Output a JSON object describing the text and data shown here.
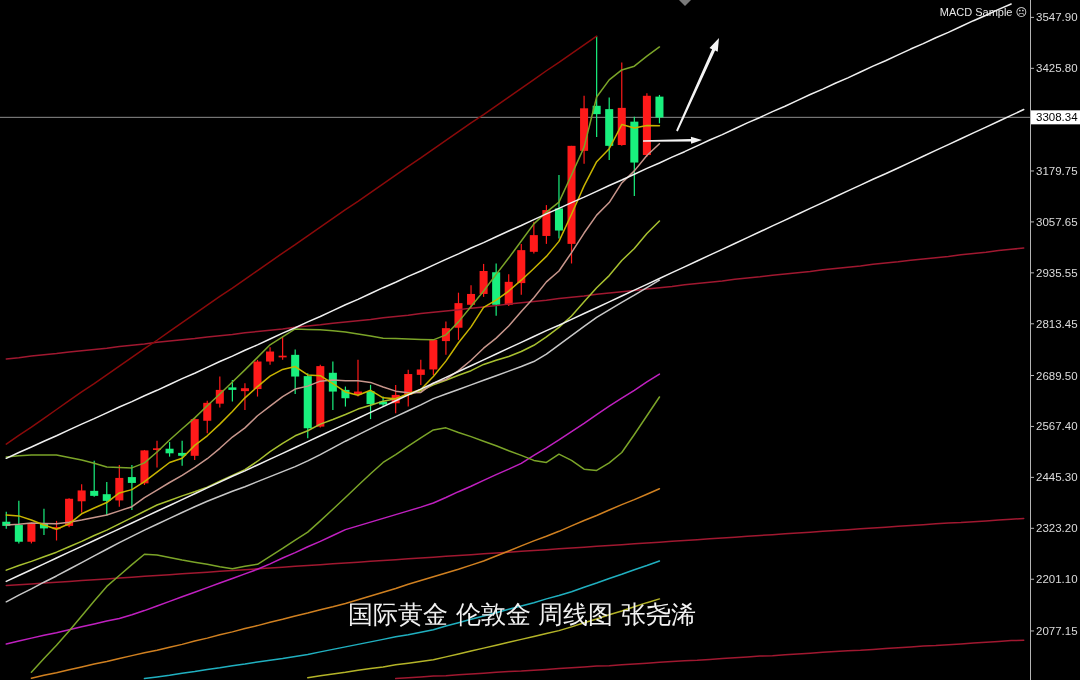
{
  "chart_data": {
    "type": "candlestick",
    "title": "国际黄金 伦敦金 周线图 张尧浠",
    "annotations": [
      "MACD Sample ☹"
    ],
    "categories": [
      null,
      null,
      null,
      null,
      null,
      null,
      null,
      null,
      null,
      null,
      null,
      null,
      null,
      null,
      null,
      null,
      null,
      null,
      null,
      null,
      null,
      null,
      null,
      null,
      null,
      null,
      null,
      null,
      null,
      null,
      null,
      null,
      null,
      null,
      null,
      null,
      null,
      null,
      null,
      null,
      null,
      null,
      null,
      null,
      null,
      null,
      null,
      null,
      null,
      null,
      null,
      null,
      null,
      null,
      null,
      null,
      null,
      null,
      null,
      null,
      null,
      null,
      null,
      null,
      null,
      null,
      null,
      null,
      null,
      null,
      null,
      null,
      null,
      null,
      null,
      null,
      null,
      null,
      null,
      null,
      null,
      null
    ],
    "ohlc": [
      [
        2339,
        2363,
        2322,
        2329
      ],
      [
        2331,
        2389,
        2287,
        2291
      ],
      [
        2291,
        2337,
        2287,
        2334
      ],
      [
        2334,
        2370,
        2307,
        2323
      ],
      [
        2321,
        2341,
        2294,
        2326
      ],
      [
        2329,
        2395,
        2326,
        2394
      ],
      [
        2388,
        2429,
        2361,
        2414
      ],
      [
        2413,
        2485,
        2399,
        2401
      ],
      [
        2405,
        2434,
        2354,
        2389
      ],
      [
        2390,
        2475,
        2375,
        2444
      ],
      [
        2446,
        2475,
        2367,
        2432
      ],
      [
        2431,
        2511,
        2427,
        2510
      ],
      [
        2511,
        2533,
        2469,
        2515
      ],
      [
        2514,
        2530,
        2495,
        2503
      ],
      [
        2504,
        2533,
        2473,
        2497
      ],
      [
        2497,
        2588,
        2487,
        2585
      ],
      [
        2581,
        2629,
        2551,
        2624
      ],
      [
        2622,
        2687,
        2613,
        2655
      ],
      [
        2661,
        2679,
        2627,
        2655
      ],
      [
        2652,
        2671,
        2607,
        2659
      ],
      [
        2657,
        2727,
        2639,
        2723
      ],
      [
        2723,
        2757,
        2715,
        2747
      ],
      [
        2733,
        2783,
        2727,
        2737
      ],
      [
        2739,
        2752,
        2645,
        2687
      ],
      [
        2688,
        2695,
        2539,
        2563
      ],
      [
        2567,
        2715,
        2565,
        2712
      ],
      [
        2696,
        2723,
        2607,
        2651
      ],
      [
        2655,
        2663,
        2615,
        2635
      ],
      [
        2644,
        2727,
        2639,
        2651
      ],
      [
        2652,
        2667,
        2585,
        2621
      ],
      [
        2627,
        2639,
        2615,
        2620
      ],
      [
        2623,
        2667,
        2599,
        2643
      ],
      [
        2643,
        2703,
        2615,
        2693
      ],
      [
        2691,
        2727,
        2667,
        2704
      ],
      [
        2704,
        2776,
        2691,
        2775
      ],
      [
        2772,
        2819,
        2739,
        2803
      ],
      [
        2804,
        2888,
        2775,
        2863
      ],
      [
        2859,
        2906,
        2851,
        2885
      ],
      [
        2885,
        2957,
        2878,
        2940
      ],
      [
        2937,
        2958,
        2833,
        2859
      ],
      [
        2859,
        2932,
        2856,
        2914
      ],
      [
        2911,
        3005,
        2883,
        2990
      ],
      [
        2986,
        3058,
        2982,
        3026
      ],
      [
        3024,
        3098,
        3005,
        3086
      ],
      [
        3090,
        3170,
        3018,
        3037
      ],
      [
        3005,
        3240,
        2958,
        3240
      ],
      [
        3228,
        3360,
        3197,
        3330
      ],
      [
        3336,
        3503,
        3261,
        3316
      ],
      [
        3328,
        3356,
        3206,
        3240
      ],
      [
        3242,
        3440,
        3240,
        3331
      ],
      [
        3298,
        3310,
        3120,
        3200
      ],
      [
        3218,
        3366,
        3214,
        3360
      ],
      [
        3358,
        3362,
        3294,
        3308
      ],
      null,
      null,
      null,
      null,
      null,
      null,
      null,
      null,
      null,
      null,
      null,
      null,
      null,
      null,
      null,
      null,
      null,
      null,
      null,
      null,
      null,
      null,
      null,
      null,
      null,
      null,
      null,
      null,
      null
    ],
    "colors": [
      "#19f07e",
      "#19f07e",
      "#ff1a1a",
      "#19f07e",
      "#ff1a1a",
      "#ff1a1a",
      "#ff1a1a",
      "#19f07e",
      "#19f07e",
      "#ff1a1a",
      "#19f07e",
      "#ff1a1a",
      "#ff1a1a",
      "#19f07e",
      "#19f07e",
      "#ff1a1a",
      "#ff1a1a",
      "#ff1a1a",
      "#19f07e",
      "#ff1a1a",
      "#ff1a1a",
      "#ff1a1a",
      "#ff1a1a",
      "#19f07e",
      "#19f07e",
      "#ff1a1a",
      "#19f07e",
      "#19f07e",
      "#ff1a1a",
      "#19f07e",
      "#19f07e",
      "#ff1a1a",
      "#ff1a1a",
      "#ff1a1a",
      "#ff1a1a",
      "#ff1a1a",
      "#ff1a1a",
      "#ff1a1a",
      "#ff1a1a",
      "#19f07e",
      "#ff1a1a",
      "#ff1a1a",
      "#ff1a1a",
      "#ff1a1a",
      "#19f07e",
      "#ff1a1a",
      "#ff1a1a",
      "#19f07e",
      "#19f07e",
      "#ff1a1a",
      "#19f07e",
      "#ff1a1a",
      "#19f07e",
      null,
      null,
      null,
      null,
      null,
      null,
      null,
      null,
      null,
      null,
      null,
      null,
      null,
      null,
      null,
      null,
      null,
      null,
      null,
      null,
      null,
      null,
      null,
      null,
      null,
      null,
      null,
      null,
      null
    ],
    "ylim": [
      1959.6,
      3589.6
    ],
    "yticks": [
      {
        "value": 3547.9,
        "label": "3547.90"
      },
      {
        "value": 3425.8,
        "label": "3425.80"
      },
      {
        "value": 3179.75,
        "label": "3179.75"
      },
      {
        "value": 3057.65,
        "label": "3057.65"
      },
      {
        "value": 2935.55,
        "label": "2935.55"
      },
      {
        "value": 2813.45,
        "label": "2813.45"
      },
      {
        "value": 2689.5,
        "label": "2689.50"
      },
      {
        "value": 2567.4,
        "label": "2567.40"
      },
      {
        "value": 2445.3,
        "label": "2445.30"
      },
      {
        "value": 2323.2,
        "label": "2323.20"
      },
      {
        "value": 2201.1,
        "label": "2201.10"
      },
      {
        "value": 2077.15,
        "label": "2077.15"
      }
    ],
    "tick_labels": "y",
    "ref_lines": [
      {
        "axis": "y",
        "value": 3308.34,
        "label": "3308.34",
        "color": "#8c8c8c"
      }
    ],
    "series": [
      {
        "type": "line",
        "color": "#a01830",
        "values": [
          null,
          null,
          null,
          null,
          null,
          null,
          null,
          null,
          null,
          null,
          null,
          null,
          null,
          null,
          null,
          null,
          null,
          null,
          null,
          null,
          null,
          null,
          null,
          null,
          null,
          null,
          null,
          null,
          null,
          null,
          null,
          1963,
          1965,
          1967,
          1969,
          1970,
          1972,
          1974,
          1976,
          1978,
          1980,
          1981,
          1983,
          1985,
          1987,
          1989,
          1991,
          1993,
          1994,
          1996,
          1998,
          2000,
          2002,
          2004,
          2006,
          2007,
          2009,
          2011,
          2013,
          2015,
          2017,
          2018,
          2020,
          2022,
          2024,
          2026,
          2028,
          2030,
          2031,
          2033,
          2035,
          2037,
          2039,
          2041,
          2042,
          2044,
          2046,
          2048,
          2050,
          2052,
          2054,
          2055
        ]
      },
      {
        "type": "line",
        "color": "#a01830",
        "values": [
          2186,
          2188,
          2190,
          2192,
          2194,
          2196,
          2198,
          2200,
          2202,
          2204,
          2206,
          2208,
          2210,
          2212,
          2214,
          2216,
          2218,
          2220,
          2222,
          2224,
          2226,
          2228,
          2230,
          2232,
          2234,
          2236,
          2238,
          2240,
          2242,
          2244,
          2246,
          2248,
          2250,
          2252,
          2254,
          2256,
          2258,
          2260,
          2262,
          2264,
          2266,
          2268,
          2270,
          2272,
          2274,
          2276,
          2278,
          2280,
          2282,
          2284,
          2286,
          2288,
          2290,
          2292,
          2294,
          2296,
          2298,
          2300,
          2302,
          2304,
          2306,
          2308,
          2310,
          2312,
          2314,
          2316,
          2318,
          2320,
          2322,
          2324,
          2326,
          2328,
          2330,
          2332,
          2334,
          2336,
          2337,
          2339,
          2341,
          2343,
          2345,
          2347
        ]
      },
      {
        "type": "line",
        "color": "#a01830",
        "values": [
          2729,
          2732,
          2736,
          2739,
          2742,
          2746,
          2749,
          2752,
          2755,
          2759,
          2762,
          2765,
          2769,
          2772,
          2775,
          2778,
          2782,
          2785,
          2788,
          2792,
          2795,
          2798,
          2801,
          2805,
          2808,
          2811,
          2815,
          2818,
          2821,
          2824,
          2828,
          2831,
          2834,
          2838,
          2841,
          2844,
          2847,
          2851,
          2854,
          2857,
          2861,
          2864,
          2867,
          2870,
          2874,
          2877,
          2880,
          2884,
          2887,
          2890,
          2893,
          2897,
          2900,
          2903,
          2907,
          2910,
          2913,
          2916,
          2920,
          2923,
          2926,
          2930,
          2933,
          2936,
          2939,
          2943,
          2946,
          2949,
          2952,
          2956,
          2959,
          2962,
          2966,
          2969,
          2972,
          2975,
          2979,
          2982,
          2985,
          2989,
          2992,
          2995
        ]
      },
      {
        "type": "line",
        "color": "#8b0a0a",
        "values": [
          2525,
          2546,
          2566,
          2587,
          2608,
          2629,
          2650,
          2670,
          2691,
          2712,
          2733,
          2754,
          2774,
          2795,
          2816,
          2837,
          2858,
          2879,
          2899,
          2920,
          2941,
          2962,
          2983,
          3003,
          3024,
          3045,
          3066,
          3087,
          3107,
          3128,
          3149,
          3170,
          3191,
          3211,
          3232,
          3253,
          3274,
          3295,
          3315,
          3336,
          3357,
          3378,
          3399,
          3420,
          3440,
          3461,
          3482,
          3503,
          null,
          null,
          null,
          null,
          null,
          null,
          null,
          null,
          null,
          null,
          null,
          null,
          null,
          null,
          null,
          null,
          null,
          null,
          null,
          null,
          null,
          null,
          null,
          null,
          null,
          null,
          null,
          null,
          null,
          null,
          null,
          null,
          null,
          null
        ]
      },
      {
        "type": "line",
        "color": "#b4b428",
        "values": [
          null,
          null,
          null,
          null,
          null,
          null,
          null,
          null,
          null,
          null,
          null,
          null,
          null,
          null,
          null,
          null,
          null,
          null,
          null,
          null,
          null,
          null,
          null,
          null,
          1965,
          1970,
          1974,
          1978,
          1983,
          1987,
          1991,
          1996,
          2000,
          2004,
          2008,
          2015,
          2022,
          2029,
          2036,
          2043,
          2050,
          2057,
          2064,
          2071,
          2078,
          2087,
          2097,
          2106,
          2116,
          2125,
          2135,
          2145,
          2154,
          null,
          null,
          null,
          null,
          null,
          null,
          null,
          null,
          null,
          null,
          null,
          null,
          null,
          null,
          null,
          null,
          null,
          null,
          null,
          null,
          null,
          null,
          null,
          null,
          null,
          null,
          null,
          null,
          null
        ]
      },
      {
        "type": "line",
        "color": "#20b0c0",
        "values": [
          null,
          null,
          null,
          null,
          null,
          null,
          null,
          null,
          null,
          null,
          null,
          1963,
          1967,
          1971,
          1976,
          1980,
          1985,
          1989,
          1994,
          1998,
          2003,
          2007,
          2011,
          2016,
          2021,
          2027,
          2033,
          2039,
          2045,
          2051,
          2057,
          2063,
          2068,
          2074,
          2080,
          2089,
          2097,
          2105,
          2113,
          2121,
          2129,
          2137,
          2145,
          2154,
          2162,
          2171,
          2182,
          2192,
          2203,
          2213,
          2224,
          2234,
          2245,
          null,
          null,
          null,
          null,
          null,
          null,
          null,
          null,
          null,
          null,
          null,
          null,
          null,
          null,
          null,
          null,
          null,
          null,
          null,
          null,
          null,
          null,
          null,
          null,
          null,
          null,
          null,
          null,
          null
        ]
      },
      {
        "type": "line",
        "color": "#d08020",
        "values": [
          null,
          null,
          1964,
          1971,
          1977,
          1984,
          1991,
          1998,
          2004,
          2011,
          2018,
          2025,
          2031,
          2038,
          2045,
          2053,
          2060,
          2068,
          2075,
          2083,
          2090,
          2098,
          2105,
          2113,
          2120,
          2128,
          2135,
          2143,
          2152,
          2161,
          2170,
          2179,
          2189,
          2198,
          2207,
          2216,
          2225,
          2235,
          2245,
          2257,
          2269,
          2281,
          2293,
          2304,
          2316,
          2329,
          2342,
          2354,
          2367,
          2380,
          2392,
          2405,
          2418,
          null,
          null,
          null,
          null,
          null,
          null,
          null,
          null,
          null,
          null,
          null,
          null,
          null,
          null,
          null,
          null,
          null,
          null,
          null,
          null,
          null,
          null,
          null,
          null,
          null,
          null,
          null,
          null,
          null
        ]
      },
      {
        "type": "line",
        "color": "#c020c0",
        "values": [
          2046,
          2053,
          2060,
          2067,
          2073,
          2080,
          2087,
          2094,
          2101,
          2107,
          2116,
          2126,
          2137,
          2148,
          2159,
          2170,
          2181,
          2192,
          2203,
          2214,
          2225,
          2238,
          2252,
          2265,
          2279,
          2292,
          2306,
          2320,
          2329,
          2338,
          2347,
          2356,
          2365,
          2374,
          2384,
          2397,
          2411,
          2424,
          2438,
          2452,
          2465,
          2479,
          2498,
          2516,
          2535,
          2555,
          2575,
          2596,
          2616,
          2635,
          2654,
          2674,
          2693,
          null,
          null,
          null,
          null,
          null,
          null,
          null,
          null,
          null,
          null,
          null,
          null,
          null,
          null,
          null,
          null,
          null,
          null,
          null,
          null,
          null,
          null,
          null,
          null,
          null,
          null,
          null,
          null,
          null
        ]
      },
      {
        "type": "line",
        "color": "#7ba428",
        "values": [
          null,
          null,
          1978,
          2011,
          2043,
          2077,
          2113,
          2149,
          2184,
          2210,
          2236,
          2261,
          2259,
          2253,
          2247,
          2242,
          2237,
          2231,
          2226,
          2232,
          2237,
          2256,
          2275,
          2295,
          2314,
          2341,
          2369,
          2397,
          2426,
          2454,
          2481,
          2500,
          2520,
          2540,
          2559,
          2564,
          2553,
          2543,
          2532,
          2521,
          2509,
          2498,
          2486,
          2481,
          2501,
          2486,
          2465,
          2462,
          2480,
          2505,
          2548,
          2593,
          2638,
          null,
          null,
          null,
          null,
          null,
          null,
          null,
          null,
          null,
          null,
          null,
          null,
          null,
          null,
          null,
          null,
          null,
          null,
          null,
          null,
          null,
          null,
          null,
          null,
          null,
          null,
          null,
          null,
          null
        ]
      },
      {
        "type": "line",
        "color": "#7ba428",
        "values": [
          2494,
          2497,
          2499,
          2499,
          2499,
          2493,
          2487,
          2479,
          2470,
          2469,
          2468,
          2480,
          2506,
          2535,
          2562,
          2588,
          2617,
          2645,
          2674,
          2703,
          2733,
          2763,
          2782,
          2801,
          2800,
          2799,
          2797,
          2794,
          2789,
          2784,
          2779,
          2778,
          2777,
          2776,
          2775,
          2787,
          2818,
          2855,
          2892,
          2932,
          2971,
          3012,
          3053,
          3081,
          3105,
          3170,
          3237,
          3357,
          3398,
          3422,
          3431,
          3455,
          3477,
          null,
          null,
          null,
          null,
          null,
          null,
          null,
          null,
          null,
          null,
          null,
          null,
          null,
          null,
          null,
          null,
          null,
          null,
          null,
          null,
          null,
          null,
          null,
          null,
          null,
          null,
          null,
          null,
          null
        ]
      },
      {
        "type": "line",
        "color": "#c8c8c8",
        "values": [
          2147,
          2163,
          2178,
          2194,
          2209,
          2225,
          2241,
          2257,
          2273,
          2289,
          2304,
          2319,
          2333,
          2347,
          2361,
          2375,
          2388,
          2400,
          2412,
          2423,
          2435,
          2447,
          2459,
          2471,
          2485,
          2500,
          2516,
          2532,
          2547,
          2562,
          2577,
          2591,
          2605,
          2619,
          2634,
          2645,
          2656,
          2667,
          2678,
          2689,
          2700,
          2711,
          2723,
          2741,
          2763,
          2785,
          2807,
          2829,
          2847,
          2865,
          2882,
          2900,
          2918,
          null,
          null,
          null,
          null,
          null,
          null,
          null,
          null,
          null,
          null,
          null,
          null,
          null,
          null,
          null,
          null,
          null,
          null,
          null,
          null,
          null,
          null,
          null,
          null,
          null,
          null,
          null,
          null,
          null
        ]
      },
      {
        "type": "line",
        "color": "#a8c030",
        "values": [
          2223,
          2234,
          2244,
          2255,
          2266,
          2279,
          2292,
          2306,
          2319,
          2334,
          2349,
          2364,
          2379,
          2390,
          2401,
          2411,
          2422,
          2436,
          2450,
          2464,
          2484,
          2507,
          2527,
          2545,
          2557,
          2573,
          2584,
          2596,
          2609,
          2618,
          2628,
          2634,
          2643,
          2653,
          2667,
          2678,
          2690,
          2701,
          2716,
          2726,
          2735,
          2747,
          2762,
          2782,
          2805,
          2832,
          2866,
          2900,
          2929,
          2965,
          2994,
          3030,
          3060,
          null,
          null,
          null,
          null,
          null,
          null,
          null,
          null,
          null,
          null,
          null,
          null,
          null,
          null,
          null,
          null,
          null,
          null,
          null,
          null,
          null,
          null,
          null,
          null,
          null,
          null,
          null,
          null,
          null
        ]
      },
      {
        "type": "line",
        "color": "#c8968c",
        "values": [
          2331,
          2333,
          2336,
          2335,
          2334,
          2338,
          2343,
          2349,
          2355,
          2365,
          2375,
          2397,
          2415,
          2433,
          2450,
          2469,
          2490,
          2515,
          2542,
          2564,
          2593,
          2616,
          2639,
          2657,
          2664,
          2676,
          2679,
          2677,
          2677,
          2673,
          2662,
          2652,
          2648,
          2649,
          2671,
          2680,
          2701,
          2726,
          2755,
          2779,
          2808,
          2843,
          2876,
          2914,
          2940,
          2984,
          3031,
          3074,
          3104,
          3151,
          3180,
          3217,
          3245,
          null,
          null,
          null,
          null,
          null,
          null,
          null,
          null,
          null,
          null,
          null,
          null,
          null,
          null,
          null,
          null,
          null,
          null,
          null,
          null,
          null,
          null,
          null,
          null,
          null,
          null,
          null,
          null,
          null
        ]
      },
      {
        "type": "line",
        "color": "#c8b400",
        "values": [
          2355,
          2353,
          2343,
          2331,
          2321,
          2334,
          2358,
          2372,
          2385,
          2408,
          2416,
          2435,
          2458,
          2481,
          2491,
          2522,
          2545,
          2573,
          2603,
          2636,
          2663,
          2688,
          2704,
          2711,
          2691,
          2689,
          2670,
          2650,
          2642,
          2654,
          2636,
          2634,
          2646,
          2656,
          2687,
          2724,
          2768,
          2806,
          2853,
          2870,
          2892,
          2918,
          2946,
          2975,
          3011,
          3076,
          3144,
          3202,
          3233,
          3291,
          3283,
          3289,
          3288,
          null,
          null,
          null,
          null,
          null,
          null,
          null,
          null,
          null,
          null,
          null,
          null,
          null,
          null,
          null,
          null,
          null,
          null,
          null,
          null,
          null,
          null,
          null,
          null,
          null,
          null,
          null,
          null,
          null
        ]
      },
      {
        "type": "line",
        "color": "#f0f0f0",
        "values": [
          2196,
          2210,
          2224,
          2238,
          2252,
          2266,
          2280,
          2294,
          2308,
          2322,
          2336,
          2350,
          2364,
          2378,
          2392,
          2406,
          2420,
          2434,
          2448,
          2461,
          2475,
          2489,
          2503,
          2517,
          2531,
          2545,
          2559,
          2573,
          2587,
          2601,
          2615,
          2629,
          2643,
          2657,
          2671,
          2685,
          2699,
          2713,
          2727,
          2741,
          2755,
          2769,
          2783,
          2797,
          2810,
          2824,
          2838,
          2852,
          2866,
          2880,
          2894,
          2908,
          2922,
          2936,
          2950,
          2964,
          2978,
          2992,
          3006,
          3020,
          3034,
          3048,
          3062,
          3076,
          3090,
          3104,
          3118,
          3132,
          3146,
          3160,
          3173,
          3187,
          3201,
          3215,
          3229,
          3243,
          3257,
          3271,
          3285,
          3299,
          3313,
          3327
        ]
      },
      {
        "type": "line",
        "color": "#f0f0f0",
        "values": [
          2491,
          2505,
          2518,
          2532,
          2545,
          2559,
          2573,
          2586,
          2600,
          2614,
          2627,
          2641,
          2654,
          2668,
          2682,
          2695,
          2709,
          2723,
          2736,
          2750,
          2763,
          2777,
          2791,
          2804,
          2818,
          2831,
          2845,
          2859,
          2872,
          2886,
          2900,
          2913,
          2927,
          2940,
          2954,
          2968,
          2981,
          2995,
          3008,
          3022,
          3036,
          3049,
          3063,
          3077,
          3090,
          3104,
          3117,
          3131,
          3145,
          3158,
          3172,
          3186,
          3199,
          3213,
          3226,
          3240,
          3254,
          3267,
          3281,
          3295,
          3308,
          3322,
          3335,
          3349,
          3363,
          3376,
          3390,
          3403,
          3417,
          3431,
          3444,
          3458,
          3472,
          3485,
          3499,
          3512,
          3526,
          3540,
          3553,
          3567,
          3580,
          null
        ]
      }
    ]
  }
}
